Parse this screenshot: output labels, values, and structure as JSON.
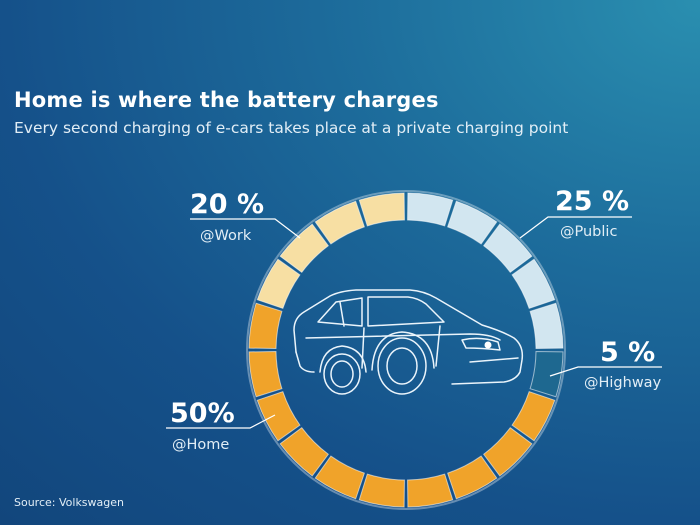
{
  "header": {
    "title": "Home is where the battery charges",
    "subtitle": "Every second charging of e-cars takes place at a private charging point"
  },
  "footer": {
    "source": "Source: Volkswagen"
  },
  "colors": {
    "home": "#f0a32a",
    "work": "#f7dfa3",
    "public": "#d2e6f0",
    "highway": "#1e6890",
    "background": "#15518a"
  },
  "icon": "electric-car-outline-icon",
  "chart_data": {
    "type": "pie",
    "style": "segmented-ring",
    "segments_total": 20,
    "start": "top",
    "direction": "clockwise",
    "slices": [
      {
        "label": "@Public",
        "value_label": "25 %",
        "value": 25,
        "color": "#d2e6f0"
      },
      {
        "label": "@Highway",
        "value_label": "5 %",
        "value": 5,
        "color": "#1e6890"
      },
      {
        "label": "@Home",
        "value_label": "50%",
        "value": 50,
        "color": "#f0a32a"
      },
      {
        "label": "@Work",
        "value_label": "20 %",
        "value": 20,
        "color": "#f7dfa3"
      }
    ]
  }
}
